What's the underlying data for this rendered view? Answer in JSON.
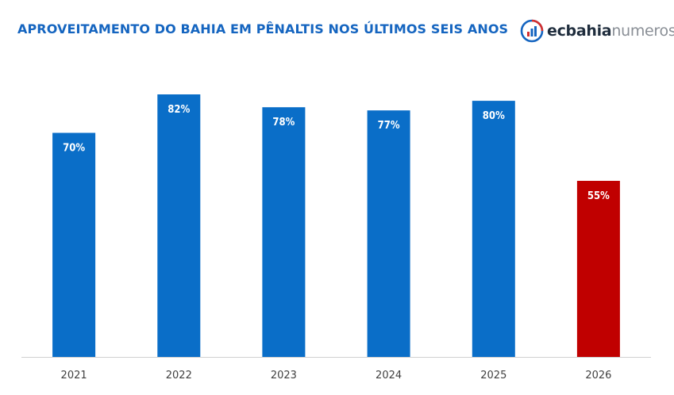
{
  "header": {
    "title": "APROVEITAMENTO DO BAHIA EM PÊNALTIS NOS ÚLTIMOS SEIS ANOS"
  },
  "logo": {
    "icon": "ecbahianumeros-logo-icon",
    "text_bold": "ecbahia",
    "text_light": "numeros"
  },
  "colors": {
    "bar_default": "#0A6EC8",
    "bar_highlight": "#C00000",
    "axis": "#D0D0D0"
  },
  "chart_data": {
    "type": "bar",
    "title": "APROVEITAMENTO DO BAHIA EM PÊNALTIS NOS ÚLTIMOS SEIS ANOS",
    "xlabel": "",
    "ylabel": "",
    "categories": [
      "2021",
      "2022",
      "2023",
      "2024",
      "2025",
      "2026"
    ],
    "values": [
      70,
      82,
      78,
      77,
      80,
      55
    ],
    "data_labels": [
      "70%",
      "82%",
      "78%",
      "77%",
      "80%",
      "55%"
    ],
    "highlight_index": 5,
    "ylim": [
      0,
      83
    ],
    "grid": false,
    "legend": "none"
  }
}
